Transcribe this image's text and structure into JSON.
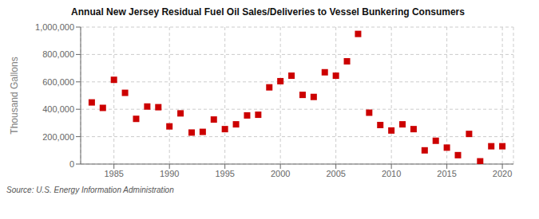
{
  "chart_data": {
    "type": "scatter",
    "title": "Annual New Jersey Residual Fuel Oil Sales/Deliveries to Vessel Bunkering Consumers",
    "ylabel": "Thousand Gallons",
    "annotations": [
      "Source: U.S. Energy Information Administration"
    ],
    "x": [
      1983,
      1984,
      1985,
      1986,
      1987,
      1988,
      1989,
      1990,
      1991,
      1992,
      1993,
      1994,
      1995,
      1996,
      1997,
      1998,
      1999,
      2000,
      2001,
      2002,
      2003,
      2004,
      2005,
      2006,
      2007,
      2008,
      2009,
      2010,
      2011,
      2012,
      2013,
      2014,
      2015,
      2016,
      2017,
      2018,
      2019,
      2020
    ],
    "values": [
      450000,
      410000,
      615000,
      520000,
      330000,
      420000,
      415000,
      275000,
      370000,
      230000,
      235000,
      325000,
      255000,
      290000,
      355000,
      360000,
      560000,
      605000,
      645000,
      505000,
      490000,
      670000,
      645000,
      750000,
      950000,
      375000,
      285000,
      245000,
      290000,
      255000,
      100000,
      170000,
      120000,
      65000,
      220000,
      20000,
      130000,
      130000
    ],
    "color": "#cc0000",
    "marker": "square",
    "xlim": [
      1982,
      2021
    ],
    "ylim": [
      0,
      1000000
    ],
    "xticks": [
      1985,
      1990,
      1995,
      2000,
      2005,
      2010,
      2015,
      2020
    ],
    "yticks": [
      0,
      {
        "value": 200000,
        "label": "200,000"
      },
      {
        "value": 400000,
        "label": "400,000"
      },
      {
        "value": 600000,
        "label": "600,000"
      },
      {
        "value": 800000,
        "label": "800,000"
      },
      {
        "value": 1000000,
        "label": "1,000,000"
      }
    ],
    "grid": true
  }
}
